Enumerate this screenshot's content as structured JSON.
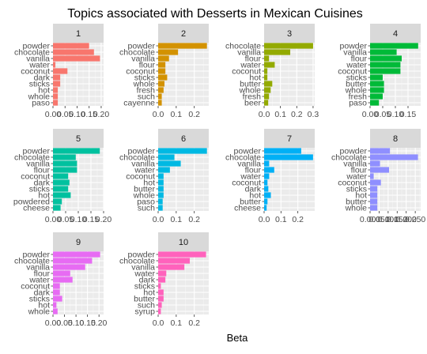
{
  "chart_data": {
    "type": "bar",
    "orientation": "horizontal",
    "title": "Topics associated with Desserts in Mexican Cuisines",
    "xlabel": "Beta",
    "ylabel": "",
    "grid": true,
    "legend": "none",
    "panels": [
      {
        "label": "1",
        "color": "#F8766D",
        "xlim": [
          0,
          0.21
        ],
        "ticks": [
          "0.00",
          "0.05",
          "0.10",
          "0.15",
          "0.20"
        ],
        "tick_values": [
          0,
          0.05,
          0.1,
          0.15,
          0.2
        ],
        "categories": [
          "powder",
          "chocolate",
          "vanilla",
          "water",
          "coconut",
          "dark",
          "sticks",
          "hot",
          "whole",
          "paso"
        ],
        "values": [
          0.15,
          0.17,
          0.195,
          0.01,
          0.06,
          0.03,
          0.03,
          0.02,
          0.02,
          0.02
        ]
      },
      {
        "label": "2",
        "color": "#D39200",
        "xlim": [
          0,
          0.28
        ],
        "ticks": [
          "0.0",
          "0.1",
          "0.2"
        ],
        "tick_values": [
          0,
          0.1,
          0.2
        ],
        "categories": [
          "powder",
          "chocolate",
          "vanilla",
          "flour",
          "coconut",
          "sticks",
          "whole",
          "fresh",
          "such",
          "cayenne"
        ],
        "values": [
          0.27,
          0.11,
          0.06,
          0.04,
          0.04,
          0.05,
          0.035,
          0.03,
          0.02,
          0.02
        ]
      },
      {
        "label": "3",
        "color": "#93AA00",
        "xlim": [
          0,
          0.31
        ],
        "ticks": [
          "0.0",
          "0.1",
          "0.2",
          "0.3"
        ],
        "tick_values": [
          0,
          0.1,
          0.2,
          0.3
        ],
        "categories": [
          "chocolate",
          "vanilla",
          "flour",
          "water",
          "coconut",
          "hot",
          "butter",
          "whole",
          "fresh",
          "beer"
        ],
        "values": [
          0.3,
          0.16,
          0.03,
          0.065,
          0.02,
          0.02,
          0.05,
          0.04,
          0.03,
          0.025
        ]
      },
      {
        "label": "4",
        "color": "#00BA38",
        "xlim": [
          0,
          0.2
        ],
        "ticks": [
          "0.00",
          "0.05",
          "0.10",
          "0.15"
        ],
        "tick_values": [
          0,
          0.05,
          0.1,
          0.15
        ],
        "categories": [
          "powder",
          "vanilla",
          "flour",
          "water",
          "coconut",
          "sticks",
          "butter",
          "whole",
          "fresh",
          "paso"
        ],
        "values": [
          0.19,
          0.105,
          0.125,
          0.12,
          0.12,
          0.05,
          0.055,
          0.055,
          0.05,
          0.035
        ]
      },
      {
        "label": "5",
        "color": "#00C19F",
        "xlim": [
          0,
          0.2
        ],
        "ticks": [
          "0.00",
          "0.05",
          "0.10",
          "0.15",
          "0.20"
        ],
        "tick_values": [
          0,
          0.05,
          0.1,
          0.15,
          0.2
        ],
        "categories": [
          "powder",
          "chocolate",
          "vanilla",
          "flour",
          "coconut",
          "dark",
          "sticks",
          "hot",
          "powdered",
          "cheese"
        ],
        "values": [
          0.185,
          0.09,
          0.095,
          0.095,
          0.06,
          0.065,
          0.06,
          0.07,
          0.035,
          0.03
        ]
      },
      {
        "label": "6",
        "color": "#00B9E3",
        "xlim": [
          0,
          0.28
        ],
        "ticks": [
          "0.0",
          "0.1",
          "0.2"
        ],
        "tick_values": [
          0,
          0.1,
          0.2
        ],
        "categories": [
          "powder",
          "chocolate",
          "vanilla",
          "water",
          "coconut",
          "hot",
          "butter",
          "whole",
          "paso",
          "such"
        ],
        "values": [
          0.27,
          0.09,
          0.125,
          0.065,
          0.03,
          0.03,
          0.03,
          0.03,
          0.025,
          0.025
        ]
      },
      {
        "label": "7",
        "color": "#00B0F6",
        "xlim": [
          0,
          0.3
        ],
        "ticks": [
          "0.0",
          "0.1",
          "0.2"
        ],
        "tick_values": [
          0,
          0.1,
          0.2
        ],
        "categories": [
          "powder",
          "chocolate",
          "vanilla",
          "flour",
          "water",
          "coconut",
          "dark",
          "hot",
          "butter",
          "cheese"
        ],
        "values": [
          0.22,
          0.29,
          0.03,
          0.06,
          0.03,
          0.02,
          0.025,
          0.04,
          0.02,
          0.015
        ]
      },
      {
        "label": "8",
        "color": "#8F8FFF",
        "xlim": [
          0,
          0.28
        ],
        "ticks": [
          "0.000",
          "0.050",
          "0.100",
          "0.150",
          "0.200",
          "0.250"
        ],
        "tick_values": [
          0,
          0.05,
          0.1,
          0.15,
          0.2,
          0.25
        ],
        "categories": [
          "powder",
          "chocolate",
          "vanilla",
          "flour",
          "water",
          "coconut",
          "sticks",
          "hot",
          "butter",
          "whole"
        ],
        "values": [
          0.11,
          0.265,
          0.055,
          0.105,
          0.02,
          0.06,
          0.04,
          0.04,
          0.04,
          0.04
        ]
      },
      {
        "label": "9",
        "color": "#E76BF3",
        "xlim": [
          0,
          0.22
        ],
        "ticks": [
          "0.00",
          "0.05",
          "0.10",
          "0.15",
          "0.20"
        ],
        "tick_values": [
          0,
          0.05,
          0.1,
          0.15,
          0.2
        ],
        "categories": [
          "powder",
          "chocolate",
          "vanilla",
          "flour",
          "water",
          "coconut",
          "dark",
          "sticks",
          "hot",
          "whole"
        ],
        "values": [
          0.205,
          0.17,
          0.14,
          0.075,
          0.085,
          0.03,
          0.03,
          0.04,
          0.015,
          0.02
        ]
      },
      {
        "label": "10",
        "color": "#FF62BC",
        "xlim": [
          0,
          0.28
        ],
        "ticks": [
          "0.0",
          "0.1",
          "0.2"
        ],
        "tick_values": [
          0,
          0.1,
          0.2
        ],
        "categories": [
          "powder",
          "chocolate",
          "vanilla",
          "water",
          "dark",
          "sticks",
          "hot",
          "butter",
          "such",
          "syrup"
        ],
        "values": [
          0.265,
          0.175,
          0.145,
          0.045,
          0.04,
          0.015,
          0.03,
          0.03,
          0.02,
          0.015
        ]
      }
    ]
  }
}
